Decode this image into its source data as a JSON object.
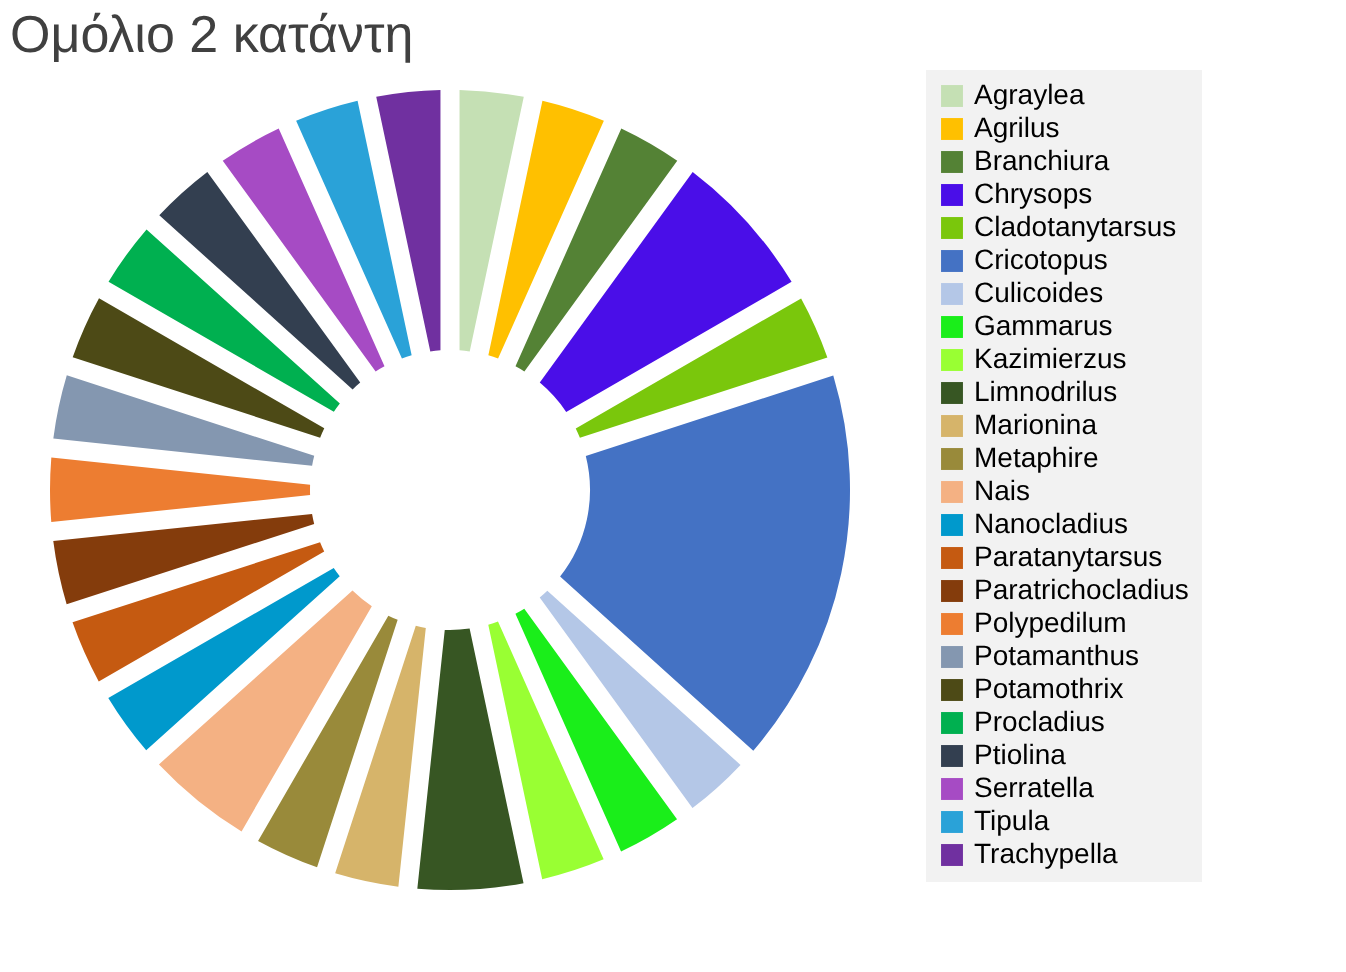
{
  "chart_data": {
    "type": "donut",
    "title": "Ομόλιο 2 κατάντη",
    "legend": "right",
    "categories": [
      "Agraylea",
      "Agrilus",
      "Branchiura",
      "Chrysops",
      "Cladotanytarsus",
      "Cricotopus",
      "Culicoides",
      "Gammarus",
      "Kazimierzus",
      "Limnodrilus",
      "Marionina",
      "Metaphire",
      "Nais",
      "Nanocladius",
      "Paratanytarsus",
      "Paratrichocladius",
      "Polypedilum",
      "Potamanthus",
      "Potamothrix",
      "Procladius",
      "Ptiolina",
      "Serratella",
      "Tipula",
      "Trachypella"
    ],
    "values": [
      3.33,
      3.33,
      3.33,
      6.67,
      3.33,
      16.67,
      3.33,
      3.33,
      3.33,
      5,
      3.33,
      3.33,
      5,
      3.33,
      3.33,
      3.33,
      3.33,
      3.33,
      3.33,
      3.33,
      3.33,
      3.33,
      3.33,
      3.33
    ],
    "colors": [
      "#c5e0b4",
      "#ffc000",
      "#548235",
      "#4a0ee8",
      "#7ac70c",
      "#4472c4",
      "#b4c7e7",
      "#1aee1a",
      "#99ff33",
      "#375623",
      "#d6b46a",
      "#998a3a",
      "#f4b183",
      "#0099cc",
      "#c55a11",
      "#843c0c",
      "#ed7d31",
      "#8497b0",
      "#4d4a16",
      "#00b050",
      "#333f50",
      "#a64bc4",
      "#2aa2d8",
      "#7030a0"
    ]
  }
}
